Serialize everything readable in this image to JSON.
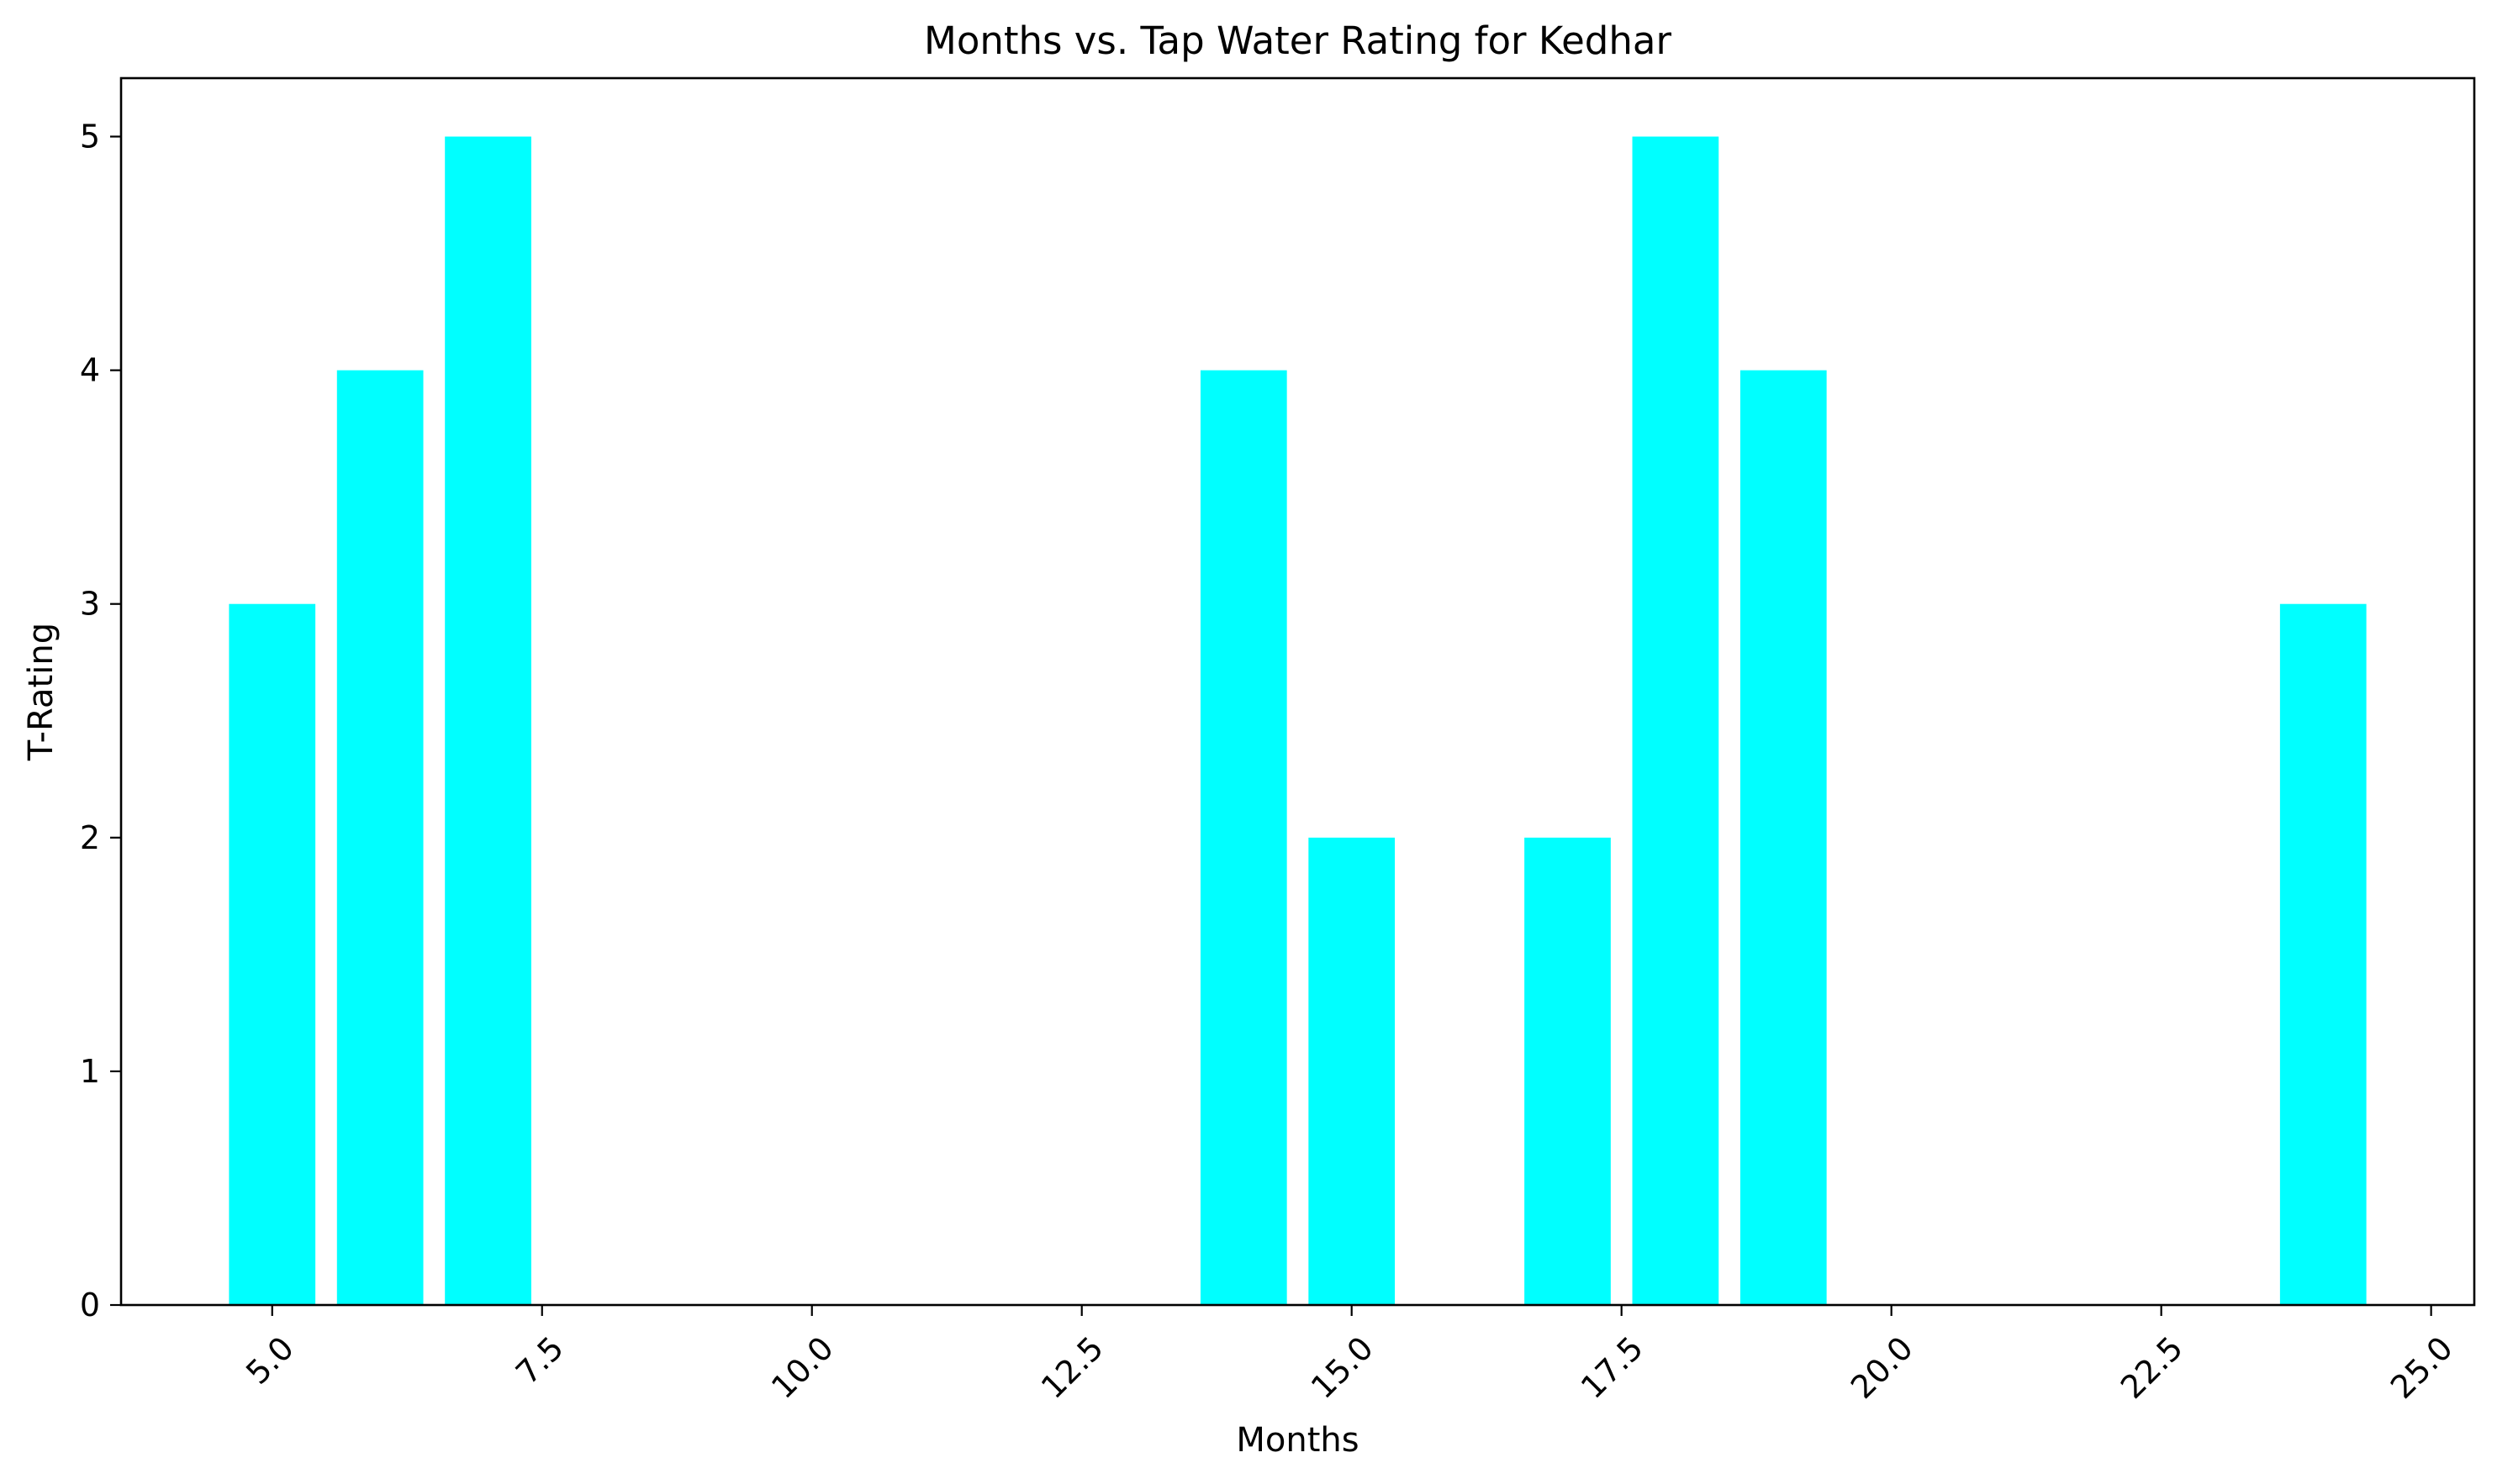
{
  "chart_data": {
    "type": "bar",
    "title": "Months vs. Tap Water Rating for Kedhar",
    "xlabel": "Months",
    "ylabel": "T-Rating",
    "x": [
      5,
      6,
      7,
      14,
      15,
      17,
      18,
      19,
      24
    ],
    "values": [
      3,
      4,
      5,
      4,
      2,
      2,
      5,
      4,
      3
    ],
    "bar_width": 0.8,
    "xlim": [
      3.6,
      25.4
    ],
    "ylim": [
      0,
      5.25
    ],
    "xticks": [
      5.0,
      7.5,
      10.0,
      12.5,
      15.0,
      17.5,
      20.0,
      22.5,
      25.0
    ],
    "xtick_labels": [
      "5.0",
      "7.5",
      "10.0",
      "12.5",
      "15.0",
      "17.5",
      "20.0",
      "22.5",
      "25.0"
    ],
    "yticks": [
      0,
      1,
      2,
      3,
      4,
      5
    ],
    "ytick_labels": [
      "0",
      "1",
      "2",
      "3",
      "4",
      "5"
    ],
    "bar_color": "#00ffff",
    "grid": false,
    "legend": "none"
  }
}
